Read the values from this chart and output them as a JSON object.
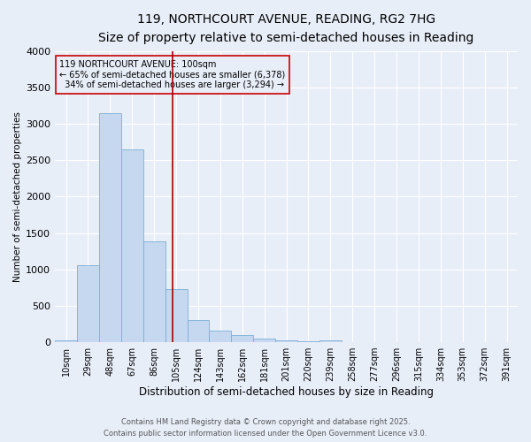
{
  "title_line1": "119, NORTHCOURT AVENUE, READING, RG2 7HG",
  "title_line2": "Size of property relative to semi-detached houses in Reading",
  "xlabel": "Distribution of semi-detached houses by size in Reading",
  "ylabel": "Number of semi-detached properties",
  "bar_labels": [
    "10sqm",
    "29sqm",
    "48sqm",
    "67sqm",
    "86sqm",
    "105sqm",
    "124sqm",
    "143sqm",
    "162sqm",
    "181sqm",
    "201sqm",
    "220sqm",
    "239sqm",
    "258sqm",
    "277sqm",
    "296sqm",
    "315sqm",
    "334sqm",
    "353sqm",
    "372sqm",
    "391sqm"
  ],
  "bar_values": [
    20,
    1060,
    3150,
    2650,
    1380,
    730,
    310,
    160,
    95,
    50,
    30,
    10,
    25,
    5,
    0,
    0,
    0,
    0,
    0,
    0,
    0
  ],
  "bar_color": "#c5d8f0",
  "bar_edge_color": "#7aafd4",
  "property_label": "119 NORTHCOURT AVENUE: 100sqm",
  "pct_smaller": 65,
  "count_smaller": 6378,
  "pct_larger": 34,
  "count_larger": 3294,
  "vline_color": "#aa0000",
  "annotation_box_color": "#cc0000",
  "bg_color": "#e8eef8",
  "grid_color": "#ffffff",
  "ylim": [
    0,
    4000
  ],
  "yticks": [
    0,
    500,
    1000,
    1500,
    2000,
    2500,
    3000,
    3500,
    4000
  ],
  "footer_line1": "Contains HM Land Registry data © Crown copyright and database right 2025.",
  "footer_line2": "Contains public sector information licensed under the Open Government Licence v3.0."
}
